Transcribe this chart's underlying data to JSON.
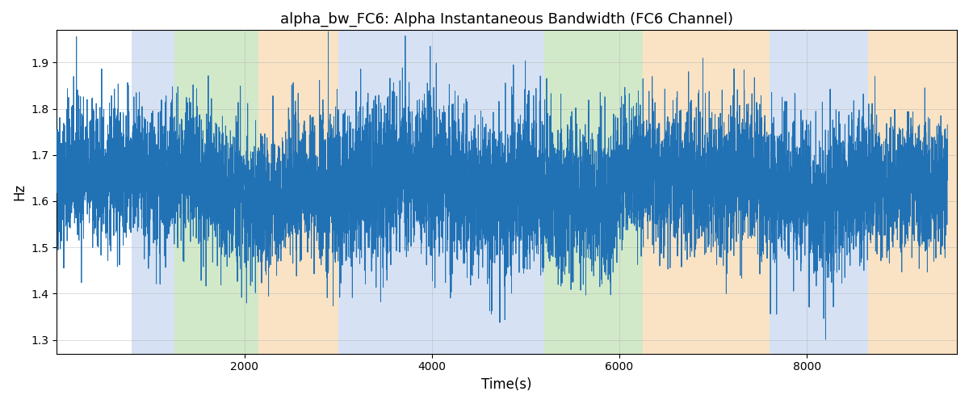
{
  "title": "alpha_bw_FC6: Alpha Instantaneous Bandwidth (FC6 Channel)",
  "xlabel": "Time(s)",
  "ylabel": "Hz",
  "ylim": [
    1.27,
    1.97
  ],
  "xlim": [
    0,
    9600
  ],
  "figsize": [
    12.0,
    5.0
  ],
  "dpi": 100,
  "line_color": "#2171b5",
  "line_width": 0.7,
  "background_color": "#ffffff",
  "grid_color": "#b0b0b0",
  "seed": 42,
  "n_points": 9500,
  "mean": 1.635,
  "std": 0.075,
  "bands": [
    {
      "xmin": 800,
      "xmax": 1250,
      "color": "#aec6e8",
      "alpha": 0.5
    },
    {
      "xmin": 1250,
      "xmax": 2150,
      "color": "#90c97a",
      "alpha": 0.4
    },
    {
      "xmin": 2150,
      "xmax": 3000,
      "color": "#f5c98a",
      "alpha": 0.5
    },
    {
      "xmin": 3000,
      "xmax": 5200,
      "color": "#aec6e8",
      "alpha": 0.5
    },
    {
      "xmin": 5200,
      "xmax": 5650,
      "color": "#90c97a",
      "alpha": 0.4
    },
    {
      "xmin": 5650,
      "xmax": 6250,
      "color": "#90c97a",
      "alpha": 0.4
    },
    {
      "xmin": 6250,
      "xmax": 7600,
      "color": "#f5c98a",
      "alpha": 0.5
    },
    {
      "xmin": 7600,
      "xmax": 8650,
      "color": "#aec6e8",
      "alpha": 0.5
    },
    {
      "xmin": 8650,
      "xmax": 9600,
      "color": "#f5c98a",
      "alpha": 0.5
    }
  ],
  "xticks": [
    2000,
    4000,
    6000,
    8000
  ],
  "yticks": [
    1.3,
    1.4,
    1.5,
    1.6,
    1.7,
    1.8,
    1.9
  ]
}
